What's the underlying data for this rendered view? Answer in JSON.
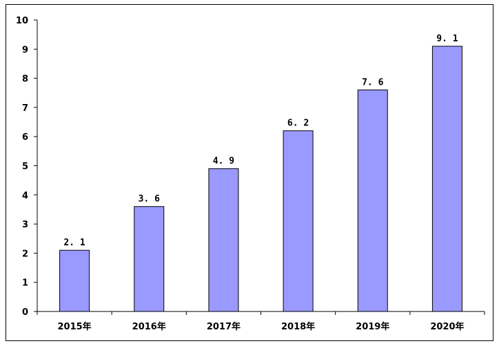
{
  "chart_data": {
    "type": "bar",
    "categories": [
      "2015年",
      "2016年",
      "2017年",
      "2018年",
      "2019年",
      "2020年"
    ],
    "values": [
      2.1,
      3.6,
      4.9,
      6.2,
      7.6,
      9.1
    ],
    "data_labels": [
      "2. 1",
      "3. 6",
      "4. 9",
      "6. 2",
      "7. 6",
      "9. 1"
    ],
    "yticks": [
      "0",
      "1",
      "2",
      "3",
      "4",
      "5",
      "6",
      "7",
      "8",
      "9",
      "10"
    ],
    "ylim": [
      0,
      10
    ],
    "title": "",
    "xlabel": "",
    "ylabel": "",
    "grid": false,
    "legend": "none",
    "bar_color": "#9999FF",
    "bar_edge_color": "#000000"
  }
}
